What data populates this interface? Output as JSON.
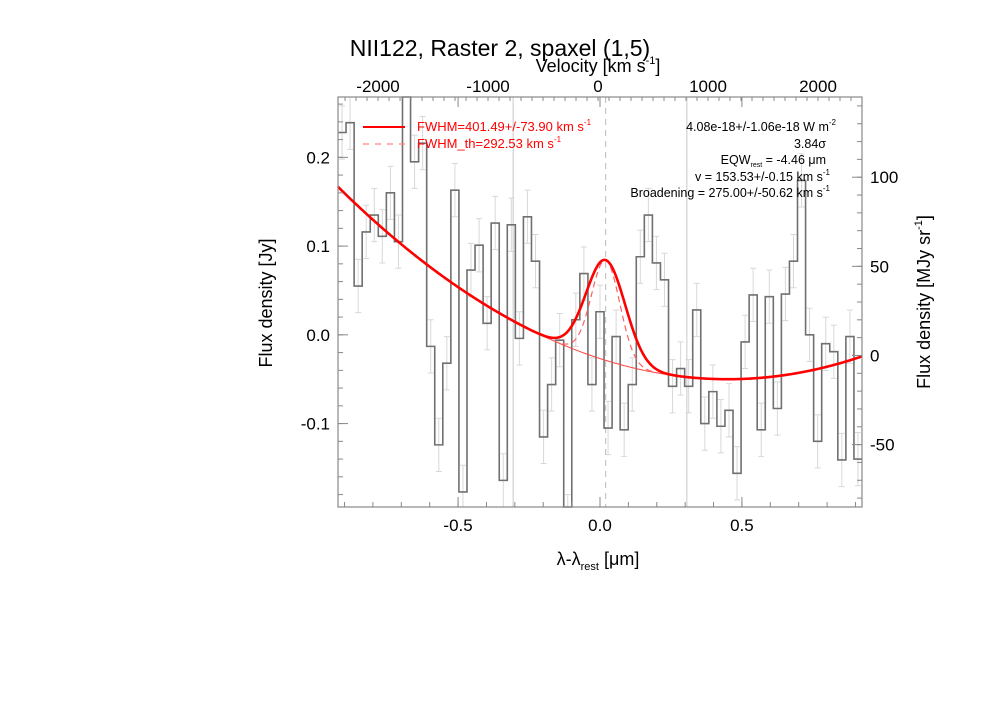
{
  "chart_data": {
    "type": "line",
    "title": "NII122, Raster 2, spaxel (1,5)",
    "xlabel": "λ-λ",
    "xlabel_sub": "rest",
    "xlabel_unit": " [μm]",
    "ylabel": "Flux density [Jy]",
    "ylabel_right": "Flux density [MJy sr",
    "ylabel_right_sup": "-1",
    "ylabel_right_end": "]",
    "top_xlabel": "Velocity [km s",
    "top_xlabel_sup": "-1",
    "top_xlabel_end": "]",
    "xlim": [
      -0.923,
      0.923
    ],
    "ylim": [
      -0.194,
      0.268
    ],
    "ylim_right": [
      -85,
      145
    ],
    "top_xlim": [
      -2364,
      2400
    ],
    "x_ticks": [
      "-0.5",
      "0.0",
      "0.5"
    ],
    "x_tick_values": [
      -0.5,
      0.0,
      0.5
    ],
    "y_ticks": [
      "-0.1",
      "0.0",
      "0.1",
      "0.2"
    ],
    "y_tick_values": [
      -0.1,
      0.0,
      0.1,
      0.2
    ],
    "y_right_ticks": [
      "-50",
      "0",
      "50",
      "100"
    ],
    "y_right_tick_values": [
      -50,
      0,
      50,
      100
    ],
    "top_ticks": [
      "-2000",
      "-1000",
      "0",
      "1000",
      "2000"
    ],
    "top_tick_values": [
      -2000,
      -1000,
      0,
      1000,
      2000
    ],
    "vertical_lines": [
      -0.306,
      0.306
    ],
    "line_center": 0.02,
    "spectrum": [
      0.228,
      0.239,
      0.055,
      0.116,
      0.135,
      0.111,
      0.16,
      0.105,
      0.3,
      0.195,
      0.216,
      -0.013,
      -0.124,
      -0.032,
      0.163,
      -0.177,
      0.073,
      0.101,
      0.013,
      0.126,
      -0.164,
      0.124,
      -0.004,
      0.133,
      0.083,
      -0.115,
      -0.056,
      -0.006,
      -0.21,
      0.017,
      0.069,
      -0.056,
      0.026,
      -0.105,
      -0.002,
      -0.107,
      -0.056,
      0.088,
      0.135,
      0.081,
      0.062,
      -0.058,
      -0.038,
      -0.058,
      0.028,
      -0.1,
      -0.064,
      -0.103,
      -0.085,
      -0.156,
      -0.008,
      0.045,
      -0.107,
      0.043,
      -0.083,
      0.046,
      0.083,
      0.174,
      0.0,
      -0.12,
      -0.01,
      -0.019,
      -0.141,
      -0.002,
      -0.14
    ],
    "error": 0.03,
    "continuum": {
      "a": 0.115,
      "x0": 0.45,
      "c": -0.05
    },
    "gaussian": {
      "center": 0.02,
      "amplitude": 0.113,
      "sigma": 0.069
    },
    "gaussian_th": {
      "center": 0.02,
      "amplitude": 0.113,
      "sigma": 0.05
    },
    "legend": [
      {
        "label": "FWHM=401.49+/-73.90 km s",
        "sup": "-1",
        "style": "solid"
      },
      {
        "label": "FWHM_th=292.53 km s",
        "sup": "-1",
        "style": "dashed"
      }
    ],
    "annotations": {
      "flux": "4.08e-18+/-1.06e-18 W m",
      "flux_sup": "-2",
      "sigma": "3.84σ",
      "eqw": "EQW",
      "eqw_sub": "rest",
      "eqw_val": " = -4.46 μm",
      "velocity": "v = 153.53+/-0.15 km s",
      "velocity_sup": "-1",
      "broadening": "Broadening = 275.00+/-50.62 km s",
      "broadening_sup": "-1"
    },
    "colors": {
      "fit": "#ff0000",
      "spectrum": "#707070",
      "error": "#d8d8d8",
      "grid": "#c8c8c8"
    }
  }
}
